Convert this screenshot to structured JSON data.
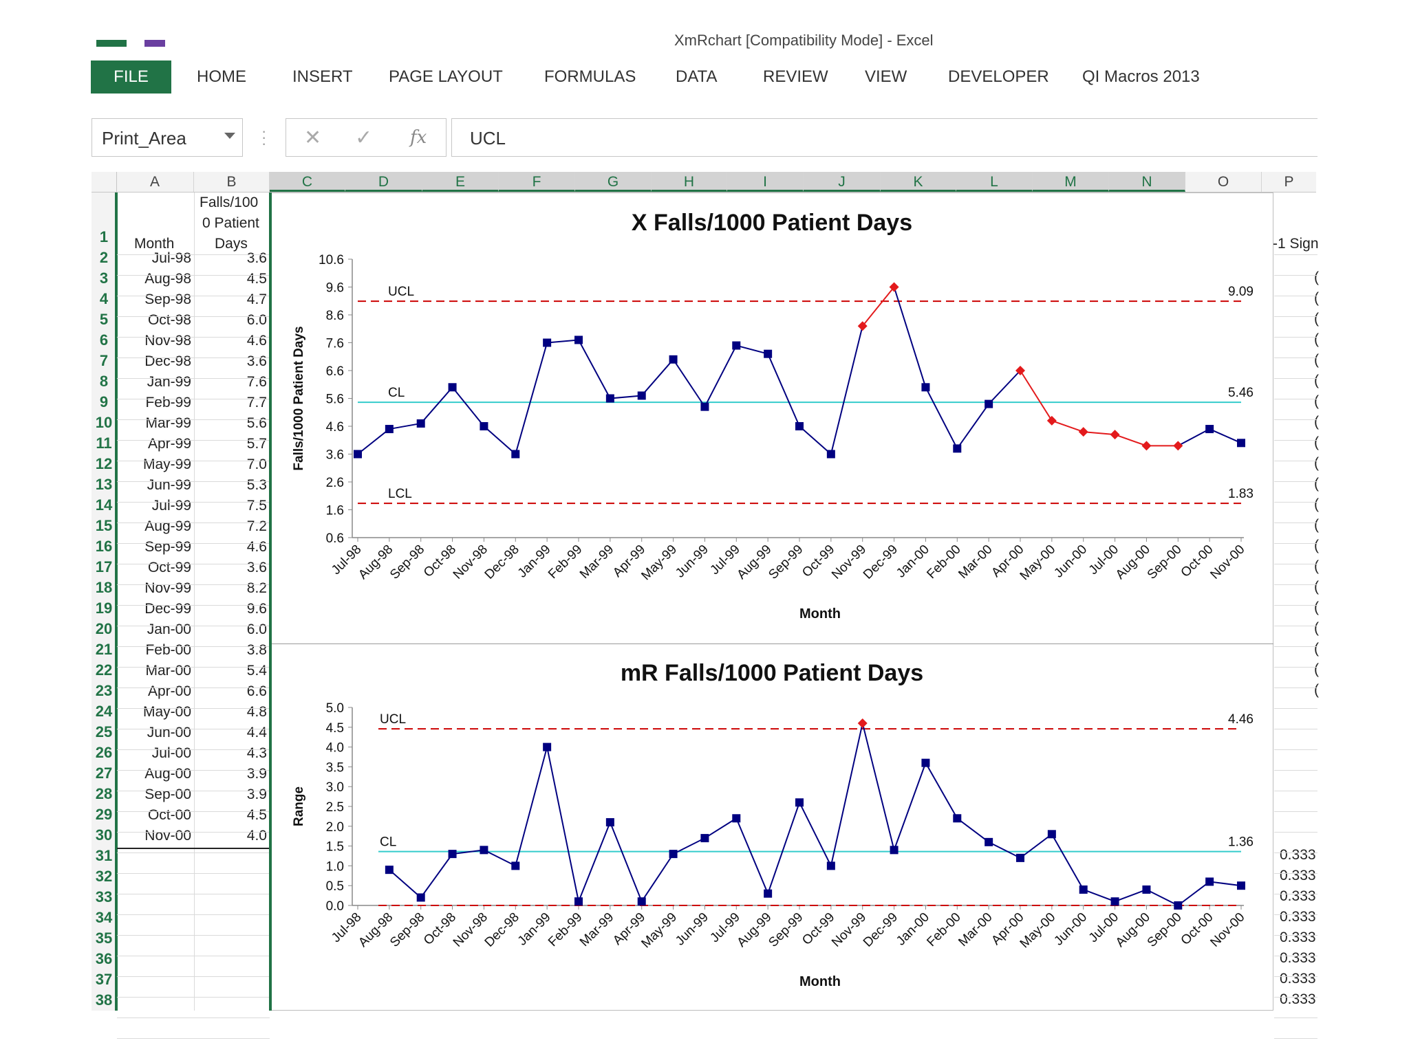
{
  "window": {
    "title": "XmRchart [Compatibility Mode] - Excel"
  },
  "ribbon": {
    "tabs": [
      "FILE",
      "HOME",
      "INSERT",
      "PAGE LAYOUT",
      "FORMULAS",
      "DATA",
      "REVIEW",
      "VIEW",
      "DEVELOPER",
      "QI Macros 2013"
    ]
  },
  "formula_bar": {
    "name_box": "Print_Area",
    "fx_symbol": "fx",
    "content": "UCL"
  },
  "columns": [
    "A",
    "B",
    "C",
    "D",
    "E",
    "F",
    "G",
    "H",
    "I",
    "J",
    "K",
    "L",
    "M",
    "N",
    "O",
    "P"
  ],
  "rows": [
    "1",
    "2",
    "3",
    "4",
    "5",
    "6",
    "7",
    "8",
    "9",
    "10",
    "11",
    "12",
    "13",
    "14",
    "15",
    "16",
    "17",
    "18",
    "19",
    "20",
    "21",
    "22",
    "23",
    "24",
    "25",
    "26",
    "27",
    "28",
    "29",
    "30",
    "31",
    "32",
    "33",
    "34",
    "35",
    "36",
    "37",
    "38"
  ],
  "sheet": {
    "header_a": "Month",
    "header_b": [
      "Falls/100",
      "0 Patient",
      "Days"
    ],
    "header_p": "-1 Sign",
    "p_values": [
      "0.333",
      "0.333",
      "0.333",
      "0.333",
      "0.333",
      "0.333",
      "0.333",
      "0.333"
    ],
    "p_mark": "("
  },
  "colors": {
    "excel_green": "#217346",
    "series": "#000080",
    "signal": "#e31a1c",
    "center_line": "#33cccc",
    "limit_line": "#cc0000"
  },
  "chart_data": [
    {
      "type": "line",
      "title": "X Falls/1000 Patient Days",
      "xlabel": "Month",
      "ylabel": "Falls/1000 Patient Days",
      "ylim": [
        0.6,
        10.6
      ],
      "yticks": [
        "10.6",
        "9.6",
        "8.6",
        "7.6",
        "6.6",
        "5.6",
        "4.6",
        "3.6",
        "2.6",
        "1.6",
        "0.6"
      ],
      "categories": [
        "Jul-98",
        "Aug-98",
        "Sep-98",
        "Oct-98",
        "Nov-98",
        "Dec-98",
        "Jan-99",
        "Feb-99",
        "Mar-99",
        "Apr-99",
        "May-99",
        "Jun-99",
        "Jul-99",
        "Aug-99",
        "Sep-99",
        "Oct-99",
        "Nov-99",
        "Dec-99",
        "Jan-00",
        "Feb-00",
        "Mar-00",
        "Apr-00",
        "May-00",
        "Jun-00",
        "Jul-00",
        "Aug-00",
        "Sep-00",
        "Oct-00",
        "Nov-00"
      ],
      "values": [
        3.6,
        4.5,
        4.7,
        6.0,
        4.6,
        3.6,
        7.6,
        7.7,
        5.6,
        5.7,
        7.0,
        5.3,
        7.5,
        7.2,
        4.6,
        3.6,
        8.2,
        9.6,
        6.0,
        3.8,
        5.4,
        6.6,
        4.8,
        4.4,
        4.3,
        3.9,
        3.9,
        4.5,
        4.0
      ],
      "signals": [
        16,
        17,
        21,
        22,
        23,
        24,
        25,
        26
      ],
      "lines": [
        {
          "label": "UCL",
          "value": 9.09,
          "value_label": "9.09"
        },
        {
          "label": "CL",
          "value": 5.46,
          "value_label": "5.46"
        },
        {
          "label": "LCL",
          "value": 1.83,
          "value_label": "1.83"
        }
      ]
    },
    {
      "type": "line",
      "title": "mR Falls/1000 Patient Days",
      "xlabel": "Month",
      "ylabel": "Range",
      "ylim": [
        0,
        5.0
      ],
      "yticks": [
        "5.0",
        "4.5",
        "4.0",
        "3.5",
        "3.0",
        "2.5",
        "2.0",
        "1.5",
        "1.0",
        "0.5",
        "0.0"
      ],
      "categories": [
        "Jul-98",
        "Aug-98",
        "Sep-98",
        "Oct-98",
        "Nov-98",
        "Dec-98",
        "Jan-99",
        "Feb-99",
        "Mar-99",
        "Apr-99",
        "May-99",
        "Jun-99",
        "Jul-99",
        "Aug-99",
        "Sep-99",
        "Oct-99",
        "Nov-99",
        "Dec-99",
        "Jan-00",
        "Feb-00",
        "Mar-00",
        "Apr-00",
        "May-00",
        "Jun-00",
        "Jul-00",
        "Aug-00",
        "Sep-00",
        "Oct-00",
        "Nov-00"
      ],
      "values": [
        null,
        0.9,
        0.2,
        1.3,
        1.4,
        1.0,
        4.0,
        0.1,
        2.1,
        0.1,
        1.3,
        1.7,
        2.2,
        0.3,
        2.6,
        1.0,
        4.6,
        1.4,
        3.6,
        2.2,
        1.6,
        1.2,
        1.8,
        0.4,
        0.1,
        0.4,
        0.0,
        0.6,
        0.5
      ],
      "signals": [
        16
      ],
      "lines": [
        {
          "label": "UCL",
          "value": 4.46,
          "value_label": "4.46"
        },
        {
          "label": "CL",
          "value": 1.36,
          "value_label": "1.36"
        },
        {
          "label": "",
          "value": 0.0,
          "value_label": ""
        }
      ]
    }
  ]
}
